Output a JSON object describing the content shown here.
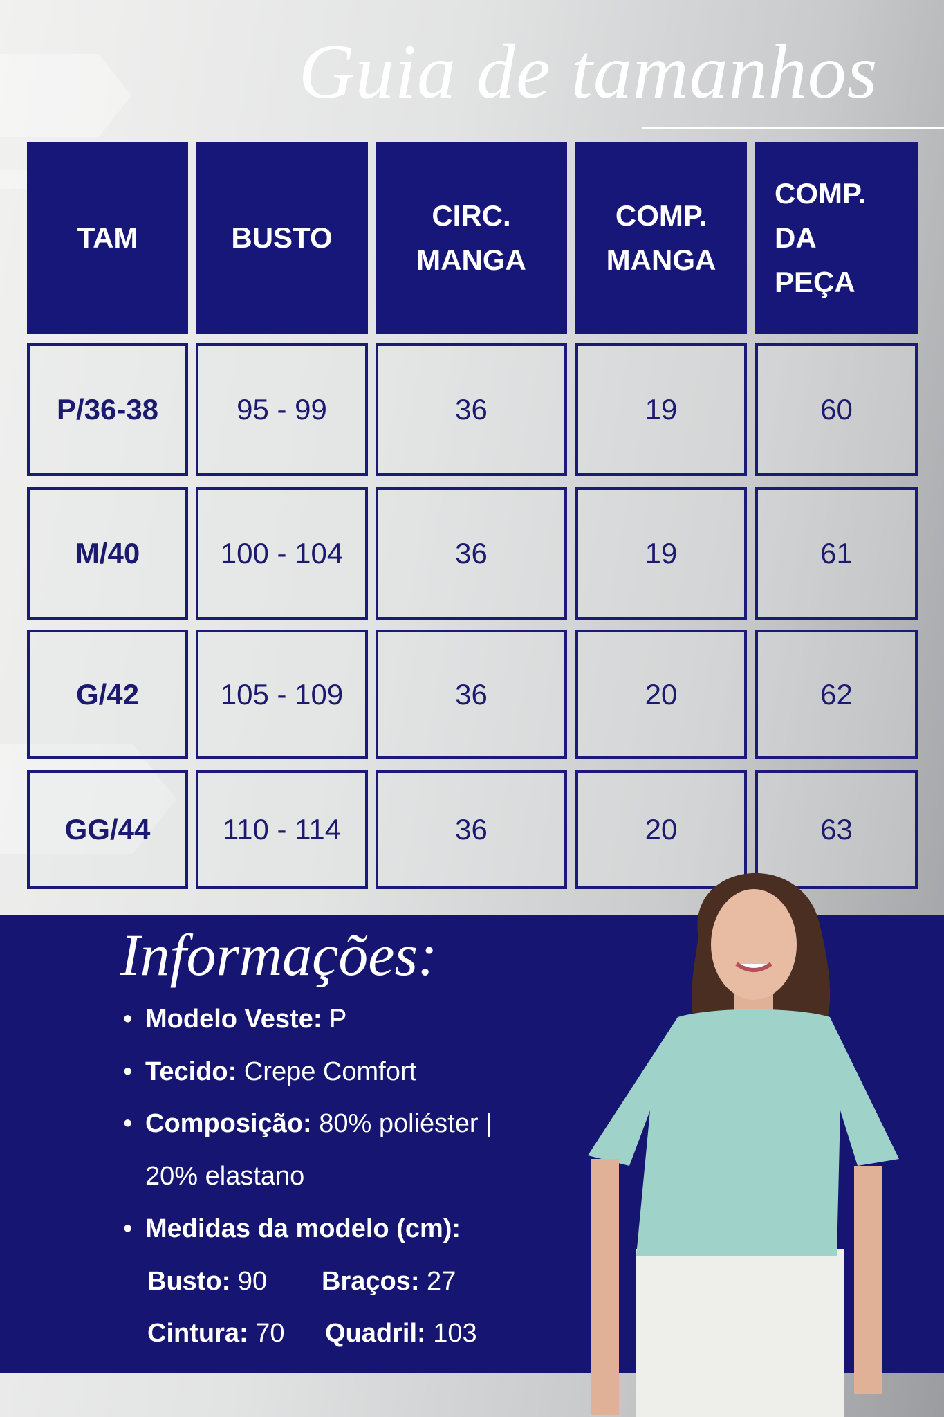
{
  "title": "Guia de tamanhos",
  "table": {
    "headers": [
      "TAM",
      "BUSTO",
      "CIRC.\nMANGA",
      "COMP.\nMANGA",
      "COMP.\nDA\nPEÇA"
    ],
    "rows": [
      [
        "P/36-38",
        "95 - 99",
        "36",
        "19",
        "60"
      ],
      [
        "M/40",
        "100 - 104",
        "36",
        "19",
        "61"
      ],
      [
        "G/42",
        "105 - 109",
        "36",
        "20",
        "62"
      ],
      [
        "GG/44",
        "110 - 114",
        "36",
        "20",
        "63"
      ]
    ]
  },
  "info": {
    "title": "Informações:",
    "bullet": "•",
    "items": [
      {
        "label": "Modelo Veste:",
        "value": " P"
      },
      {
        "label": "Tecido:",
        "value": " Crepe Comfort"
      },
      {
        "label": "Composição:",
        "value": " 80% poliéster |"
      },
      {
        "label": "",
        "value": "20% elastano"
      },
      {
        "label": "Medidas da modelo (cm):",
        "value": ""
      }
    ],
    "measures": [
      {
        "label": "Busto:",
        "value": " 90"
      },
      {
        "label": "Braços:",
        "value": " 27"
      },
      {
        "label": "Cintura:",
        "value": " 70"
      },
      {
        "label": "Quadril:",
        "value": " 103"
      }
    ]
  },
  "colors": {
    "navy": "#17177a",
    "band": "#161672",
    "text_dark": "#1b1a6e",
    "blouse": "#9fd3c9"
  }
}
